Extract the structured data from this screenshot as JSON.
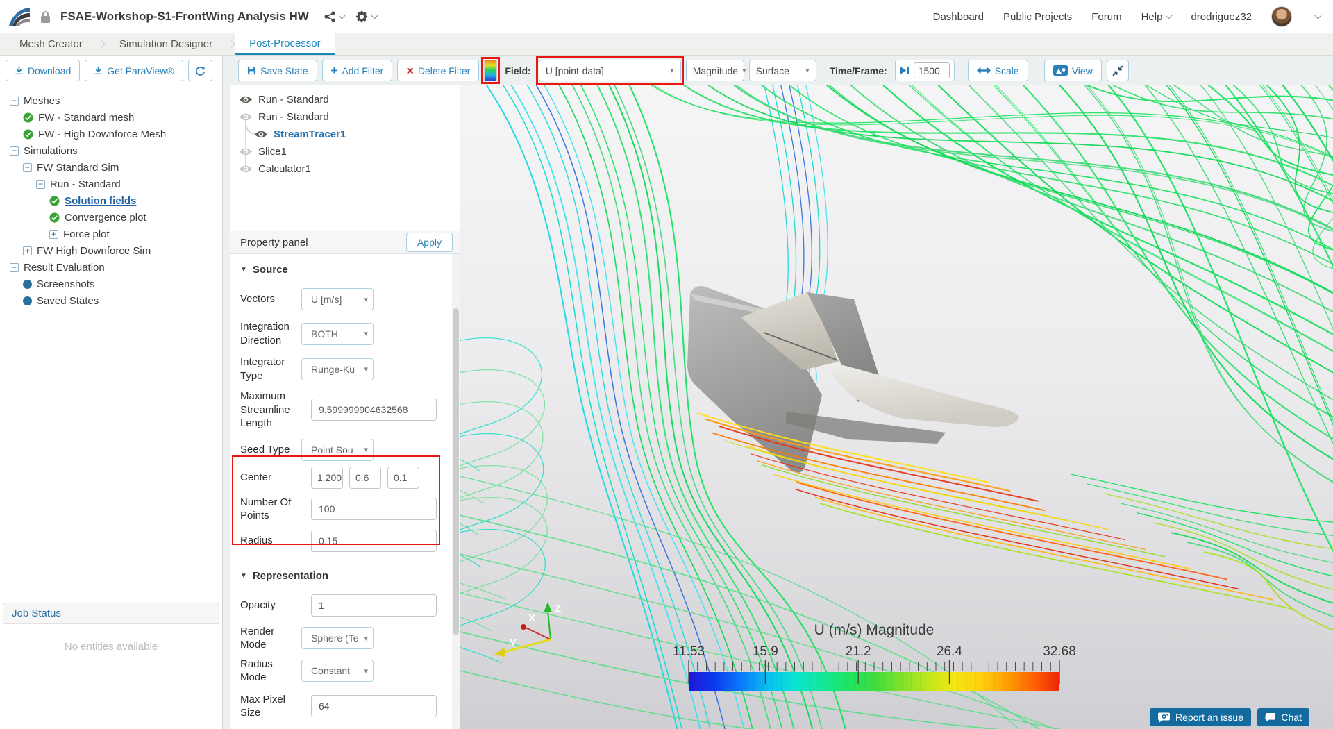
{
  "header": {
    "title": "FSAE-Workshop-S1-FrontWing Analysis HW",
    "nav": [
      "Dashboard",
      "Public Projects",
      "Forum",
      "Help"
    ],
    "username": "drodriguez32"
  },
  "tabs": [
    {
      "label": "Mesh Creator",
      "active": false
    },
    {
      "label": "Simulation Designer",
      "active": false
    },
    {
      "label": "Post-Processor",
      "active": true
    }
  ],
  "sidebar": {
    "buttons": {
      "download": "Download",
      "get_paraview": "Get ParaView®"
    },
    "tree": [
      {
        "label": "Meshes",
        "depth": 0,
        "icon": "collapse"
      },
      {
        "label": "FW - Standard mesh",
        "depth": 1,
        "icon": "check"
      },
      {
        "label": "FW - High Downforce Mesh",
        "depth": 1,
        "icon": "check"
      },
      {
        "label": "Simulations",
        "depth": 0,
        "icon": "collapse"
      },
      {
        "label": "FW Standard Sim",
        "depth": 1,
        "icon": "collapse"
      },
      {
        "label": "Run - Standard",
        "depth": 2,
        "icon": "collapse"
      },
      {
        "label": "Solution fields",
        "depth": 3,
        "icon": "check",
        "selected": true
      },
      {
        "label": "Convergence plot",
        "depth": 3,
        "icon": "check"
      },
      {
        "label": "Force plot",
        "depth": 3,
        "icon": "expand"
      },
      {
        "label": "FW High Downforce Sim",
        "depth": 1,
        "icon": "expand"
      },
      {
        "label": "Result Evaluation",
        "depth": 0,
        "icon": "collapse"
      },
      {
        "label": "Screenshots",
        "depth": 1,
        "icon": "dot"
      },
      {
        "label": "Saved States",
        "depth": 1,
        "icon": "dot"
      }
    ],
    "job_status": {
      "title": "Job Status",
      "empty": "No entities available"
    }
  },
  "toolbar": {
    "save_state": "Save State",
    "add_filter": "Add Filter",
    "delete_filter": "Delete Filter",
    "field_label": "Field:",
    "field_value": "U [point-data]",
    "component_value": "Magnitude",
    "representation_value": "Surface",
    "time_label": "Time/Frame:",
    "time_value": "1500",
    "scale": "Scale",
    "view": "View"
  },
  "pipeline": [
    {
      "label": "Run - Standard",
      "depth": 0,
      "eye": "dark"
    },
    {
      "label": "Run - Standard",
      "depth": 0,
      "eye": "light"
    },
    {
      "label": "StreamTracer1",
      "depth": 1,
      "eye": "dark",
      "selected": true
    },
    {
      "label": "Slice1",
      "depth": 0,
      "eye": "light"
    },
    {
      "label": "Calculator1",
      "depth": 0,
      "eye": "light"
    }
  ],
  "property_panel": {
    "title": "Property panel",
    "apply": "Apply",
    "source": {
      "section": "Source",
      "rows": [
        {
          "label": "Vectors",
          "type": "select",
          "value": "U [m/s]"
        },
        {
          "label": "Integration Direction",
          "type": "select",
          "value": "BOTH"
        },
        {
          "label": "Integrator Type",
          "type": "select",
          "value": "Runge-Ku"
        },
        {
          "label": "Maximum Streamline Length",
          "type": "input",
          "value": "9.599999904632568"
        },
        {
          "label": "Seed Type",
          "type": "select",
          "value": "Point Sou"
        },
        {
          "label": "Center",
          "type": "triple",
          "values": [
            "1.2000000476837158",
            "0.6",
            "0.1"
          ],
          "highlight": true
        },
        {
          "label": "Number Of Points",
          "type": "input",
          "value": "100",
          "highlight": true
        },
        {
          "label": "Radius",
          "type": "input",
          "value": "0.15",
          "highlight": true
        }
      ]
    },
    "representation": {
      "section": "Representation",
      "rows": [
        {
          "label": "Opacity",
          "type": "input",
          "value": "1"
        },
        {
          "label": "Render Mode",
          "type": "select",
          "value": "Sphere (Te"
        },
        {
          "label": "Radius Mode",
          "type": "select",
          "value": "Constant"
        },
        {
          "label": "Max Pixel Size",
          "type": "input",
          "value": "64"
        }
      ]
    }
  },
  "viewport": {
    "legend": {
      "title": "U (m/s) Magnitude",
      "tick_labels": [
        "11.53",
        "15.9",
        "21.2",
        "26.4",
        "32.68"
      ],
      "min": 11.53,
      "max": 32.68
    },
    "axes": [
      "X",
      "Y",
      "Z"
    ],
    "buttons": {
      "report": "Report an issue",
      "chat": "Chat"
    }
  },
  "icons": {
    "logo-icon": "swoosh",
    "lock-icon": "padlock",
    "share-icon": "share-nodes",
    "gear-icon": "gear",
    "chevron-down-icon": "chevron",
    "download-icon": "arrow-down-tray",
    "refresh-icon": "circular-arrows",
    "save-icon": "floppy-disk",
    "add-icon": "+",
    "delete-icon": "×",
    "colormap-icon": "gradient-bar",
    "play-next-icon": "play-step",
    "scale-icon": "double-arrow",
    "view-icon": "media-badge",
    "fit-view-icon": "compress-arrows",
    "eye-icon": "eye",
    "report-icon": "camera-bubble",
    "chat-icon": "speech-bubble",
    "check-icon": "check-circle",
    "node-icon": "dot"
  },
  "colors": {
    "accent": "#2980b9",
    "tab_active": "#1a87b9",
    "annotation": "#e8170f",
    "check_green": "#35a435",
    "node_blue": "#2a6f9e",
    "button_dark_blue": "#136a9e",
    "legend_gradient": [
      "#2016d6",
      "#0b3cf0",
      "#0a7cfa",
      "#09c0f2",
      "#0ae4d2",
      "#12e89a",
      "#1fe462",
      "#3fdc3f",
      "#7ce22b",
      "#bfe61c",
      "#f2e614",
      "#ffd20e",
      "#ffa004",
      "#ff6404",
      "#ee2404"
    ],
    "stream_greens": [
      "#14e25a",
      "#2ce068",
      "#0cd851",
      "#3fd977",
      "#65e18c"
    ],
    "stream_cyans": [
      "#17d8de",
      "#00ddc8",
      "#3ce2ee"
    ],
    "stream_blue": "#2a6ae0",
    "stream_warm": [
      "#ffdf1a",
      "#ff9b17",
      "#e8351a",
      "#ff7a00",
      "#c6e020",
      "#ffd400",
      "#e8351a",
      "#ff9b17",
      "#8adf2a",
      "#ffca10",
      "#ff5f10",
      "#e02810",
      "#ffb515",
      "#a8e020"
    ]
  }
}
